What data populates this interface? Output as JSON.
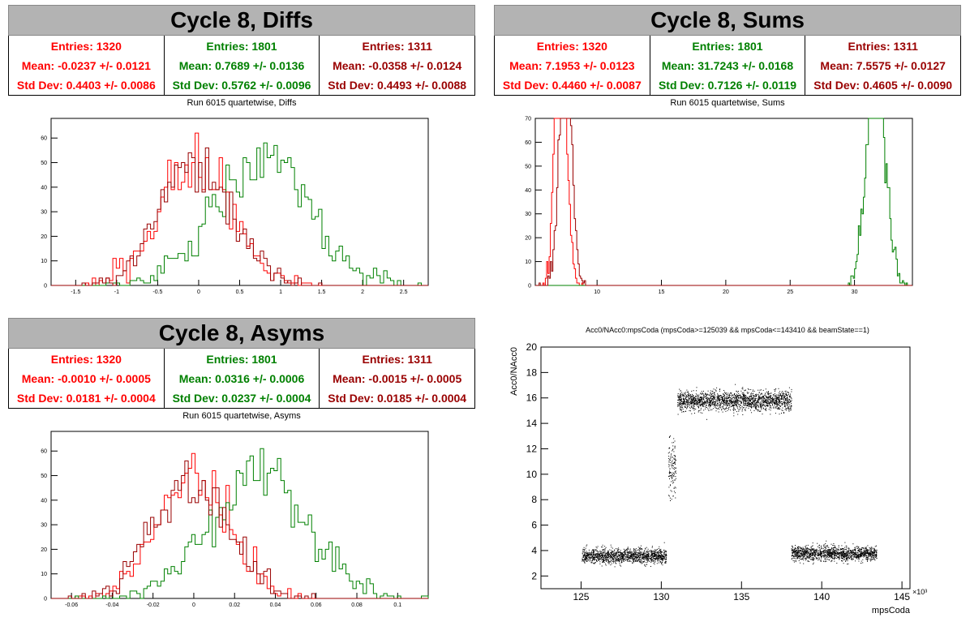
{
  "colors": {
    "red": "#ff0000",
    "green": "#008000",
    "darkred": "#990000",
    "titlebar": "#b3b3b3"
  },
  "panels": {
    "diffs": {
      "title": "Cycle 8, Diffs",
      "subtitle": "Run 6015 quartetwise, Diffs",
      "stats": [
        {
          "entries": "Entries: 1320",
          "mean": "Mean: -0.0237 +/- 0.0121",
          "std": "Std Dev: 0.4403 +/- 0.0086",
          "color": "#ff0000"
        },
        {
          "entries": "Entries: 1801",
          "mean": "Mean: 0.7689 +/- 0.0136",
          "std": "Std Dev: 0.5762 +/- 0.0096",
          "color": "#008000"
        },
        {
          "entries": "Entries: 1311",
          "mean": "Mean: -0.0358 +/- 0.0124",
          "std": "Std Dev: 0.4493 +/- 0.0088",
          "color": "#990000"
        }
      ]
    },
    "sums": {
      "title": "Cycle 8, Sums",
      "subtitle": "Run 6015 quartetwise, Sums",
      "stats": [
        {
          "entries": "Entries: 1320",
          "mean": "Mean: 7.1953 +/- 0.0123",
          "std": "Std Dev: 0.4460 +/- 0.0087",
          "color": "#ff0000"
        },
        {
          "entries": "Entries: 1801",
          "mean": "Mean: 31.7243 +/- 0.0168",
          "std": "Std Dev: 0.7126 +/- 0.0119",
          "color": "#008000"
        },
        {
          "entries": "Entries: 1311",
          "mean": "Mean: 7.5575 +/- 0.0127",
          "std": "Std Dev: 0.4605 +/- 0.0090",
          "color": "#990000"
        }
      ]
    },
    "asyms": {
      "title": "Cycle 8, Asyms",
      "subtitle": "Run 6015 quartetwise, Asyms",
      "stats": [
        {
          "entries": "Entries: 1320",
          "mean": "Mean: -0.0010 +/- 0.0005",
          "std": "Std Dev: 0.0181 +/- 0.0004",
          "color": "#ff0000"
        },
        {
          "entries": "Entries: 1801",
          "mean": "Mean: 0.0316 +/- 0.0006",
          "std": "Std Dev: 0.0237 +/- 0.0004",
          "color": "#008000"
        },
        {
          "entries": "Entries: 1311",
          "mean": "Mean: -0.0015 +/- 0.0005",
          "std": "Std Dev: 0.0185 +/- 0.0004",
          "color": "#990000"
        }
      ]
    },
    "scatter": {
      "title": "Acc0/NAcc0:mpsCoda (mpsCoda>=125039 && mpsCoda<=143410 && beamState==1)",
      "xlabel": "mpsCoda",
      "ylabel": "Acc0/NAcc0",
      "xunit": "×10³"
    }
  },
  "chart_data": [
    {
      "type": "histogram",
      "name": "diffs",
      "title": "Run 6015 quartetwise, Diffs",
      "xlim": [
        -1.8,
        2.8
      ],
      "ylim": [
        0,
        68
      ],
      "xticks": [
        -1.5,
        -1,
        -0.5,
        0,
        0.5,
        1,
        1.5,
        2,
        2.5
      ],
      "yticks": [
        0,
        10,
        20,
        30,
        40,
        50,
        60
      ],
      "series": [
        {
          "name": "Entries: 1320",
          "color": "#ff0000",
          "entries": 1320,
          "mean": -0.0237,
          "std": 0.4403
        },
        {
          "name": "Entries: 1801",
          "color": "#008000",
          "entries": 1801,
          "mean": 0.7689,
          "std": 0.5762
        },
        {
          "name": "Entries: 1311",
          "color": "#990000",
          "entries": 1311,
          "mean": -0.0358,
          "std": 0.4493
        }
      ]
    },
    {
      "type": "histogram",
      "name": "sums",
      "title": "Run 6015 quartetwise, Sums",
      "xlim": [
        5.2,
        34.5
      ],
      "ylim": [
        0,
        70
      ],
      "xticks": [
        10,
        15,
        20,
        25,
        30
      ],
      "yticks": [
        0,
        10,
        20,
        30,
        40,
        50,
        60,
        70
      ],
      "series": [
        {
          "name": "Entries: 1320",
          "color": "#ff0000",
          "entries": 1320,
          "mean": 7.1953,
          "std": 0.446
        },
        {
          "name": "Entries: 1801",
          "color": "#008000",
          "entries": 1801,
          "mean": 31.7243,
          "std": 0.7126
        },
        {
          "name": "Entries: 1311",
          "color": "#990000",
          "entries": 1311,
          "mean": 7.5575,
          "std": 0.4605
        }
      ]
    },
    {
      "type": "histogram",
      "name": "asyms",
      "title": "Run 6015 quartetwise, Asyms",
      "xlim": [
        -0.07,
        0.115
      ],
      "ylim": [
        0,
        68
      ],
      "xticks": [
        -0.06,
        -0.04,
        -0.02,
        0,
        0.02,
        0.04,
        0.06,
        0.08,
        0.1
      ],
      "yticks": [
        0,
        10,
        20,
        30,
        40,
        50,
        60
      ],
      "series": [
        {
          "name": "Entries: 1320",
          "color": "#ff0000",
          "entries": 1320,
          "mean": -0.001,
          "std": 0.0181
        },
        {
          "name": "Entries: 1801",
          "color": "#008000",
          "entries": 1801,
          "mean": 0.0316,
          "std": 0.0237
        },
        {
          "name": "Entries: 1311",
          "color": "#990000",
          "entries": 1311,
          "mean": -0.0015,
          "std": 0.0185
        }
      ]
    },
    {
      "type": "scatter",
      "name": "scatter",
      "title": "Acc0/NAcc0:mpsCoda (mpsCoda>=125039 && mpsCoda<=143410 && beamState==1)",
      "xlabel": "mpsCoda",
      "ylabel": "Acc0/NAcc0",
      "xlim": [
        122.5,
        145.5
      ],
      "ylim": [
        1,
        20
      ],
      "xticks": [
        125,
        130,
        135,
        140,
        145
      ],
      "yticks": [
        2,
        4,
        6,
        8,
        10,
        12,
        14,
        16,
        18,
        20
      ],
      "clusters": [
        {
          "x": [
            125.04,
            130.3
          ],
          "y_center": 3.6,
          "y_spread": 0.4
        },
        {
          "x": [
            130.4,
            130.9
          ],
          "y_center": 10.5,
          "y_spread": 1.6
        },
        {
          "x": [
            131.0,
            138.1
          ],
          "y_center": 15.8,
          "y_spread": 0.55
        },
        {
          "x": [
            138.1,
            143.41
          ],
          "y_center": 3.8,
          "y_spread": 0.4
        }
      ]
    }
  ]
}
